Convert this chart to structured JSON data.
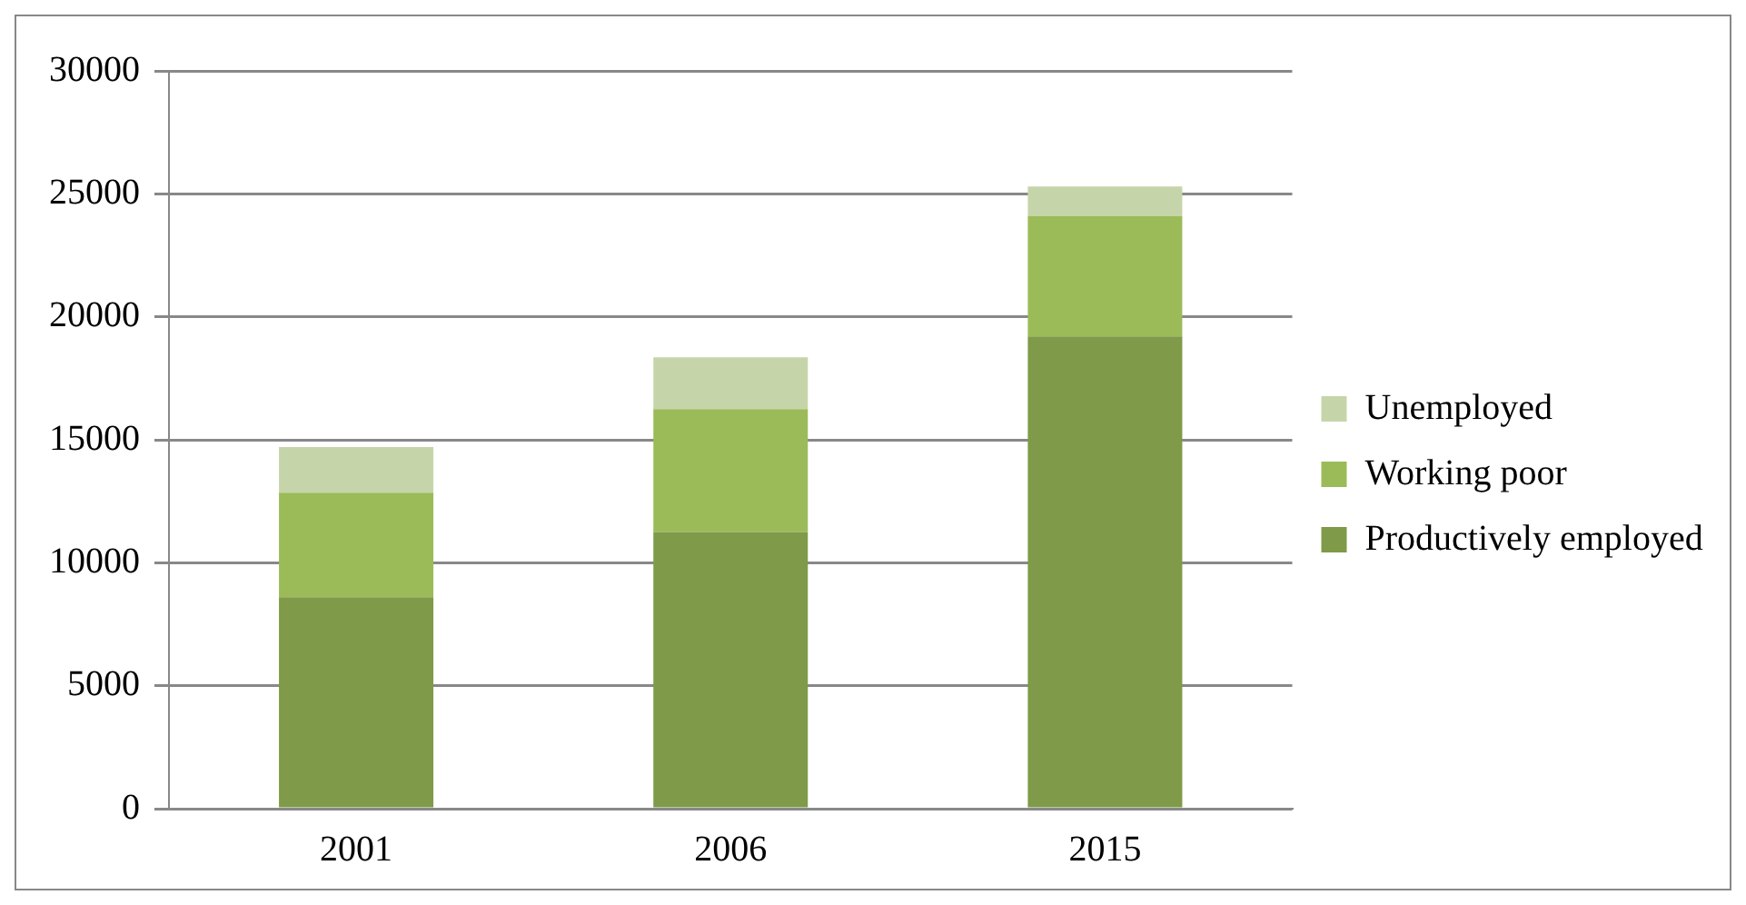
{
  "chart_data": {
    "type": "bar",
    "stacked": true,
    "categories": [
      "2001",
      "2006",
      "2015"
    ],
    "series": [
      {
        "name": "Productively employed",
        "color": "#7f9a48",
        "values": [
          8600,
          11250,
          19200
        ]
      },
      {
        "name": "Working poor",
        "color": "#9bbb59",
        "values": [
          4250,
          5000,
          4900
        ]
      },
      {
        "name": "Unemployed",
        "color": "#c5d5a9",
        "values": [
          1850,
          2100,
          1200
        ]
      }
    ],
    "ylim": [
      0,
      30000
    ],
    "yticks": [
      0,
      5000,
      10000,
      15000,
      20000,
      25000,
      30000
    ],
    "grid": "y",
    "legend": "right"
  }
}
